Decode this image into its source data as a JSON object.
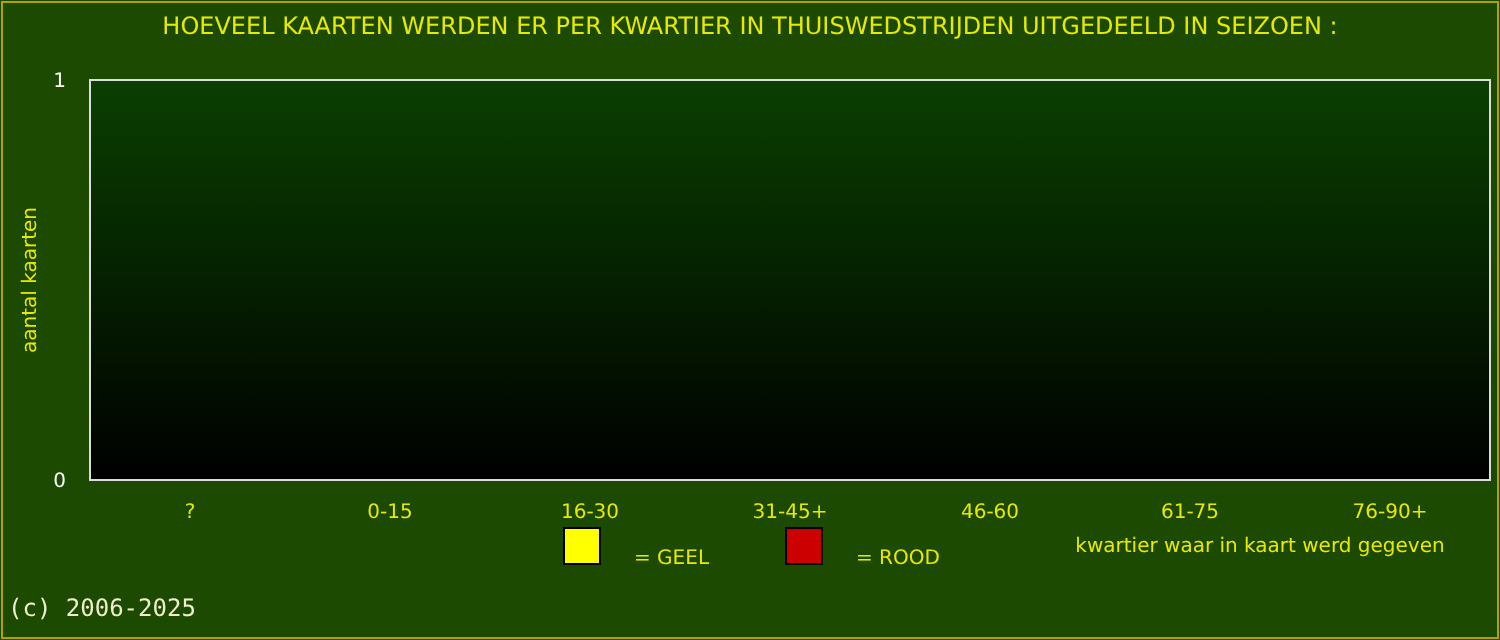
{
  "chart_data": {
    "type": "bar",
    "title": "HOEVEEL KAARTEN WERDEN ER PER KWARTIER IN THUISWEDSTRIJDEN UITGEDEELD IN SEIZOEN :",
    "categories": [
      "?",
      "0-15",
      "16-30",
      "31-45+",
      "46-60",
      "61-75",
      "76-90+"
    ],
    "series": [
      {
        "name": "= GEEL",
        "color": "#ffff00",
        "values": [
          0,
          0,
          0,
          0,
          0,
          0,
          0
        ]
      },
      {
        "name": "= ROOD",
        "color": "#cc0000",
        "values": [
          0,
          0,
          0,
          0,
          0,
          0,
          0
        ]
      }
    ],
    "xlabel": "kwartier waar in kaart werd gegeven",
    "ylabel": "aantal kaarten",
    "ylim": [
      0,
      1
    ],
    "yticks": [
      0,
      1
    ],
    "grid": false,
    "legend": "bottom",
    "annotations": [
      "(c) 2006-2025"
    ]
  }
}
